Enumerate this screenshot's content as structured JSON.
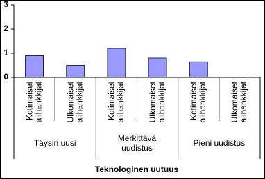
{
  "chart_data": {
    "type": "bar",
    "x_title": "Teknologinen uutuus",
    "groups": [
      [
        "Täysin uusi"
      ],
      [
        "Merkittävä",
        "uudistus"
      ],
      [
        "Pieni uudistus"
      ]
    ],
    "categories": [
      [
        "Kotimaiset",
        "alihankkijat"
      ],
      [
        "Ulkomaiset",
        "alihankkijat"
      ],
      [
        "Kotimaiset",
        "alihankkijat"
      ],
      [
        "Ulkomaiset",
        "alihankkijat"
      ],
      [
        "Kotimaiset",
        "alihankkijat"
      ],
      [
        "Ulkomaiset",
        "alihankkijat"
      ]
    ],
    "values": [
      0.9,
      0.5,
      1.2,
      0.8,
      0.65,
      0
    ],
    "color": "#9999ff",
    "ylim": [
      0,
      3
    ],
    "yticks": [
      0,
      1,
      2,
      3
    ]
  }
}
